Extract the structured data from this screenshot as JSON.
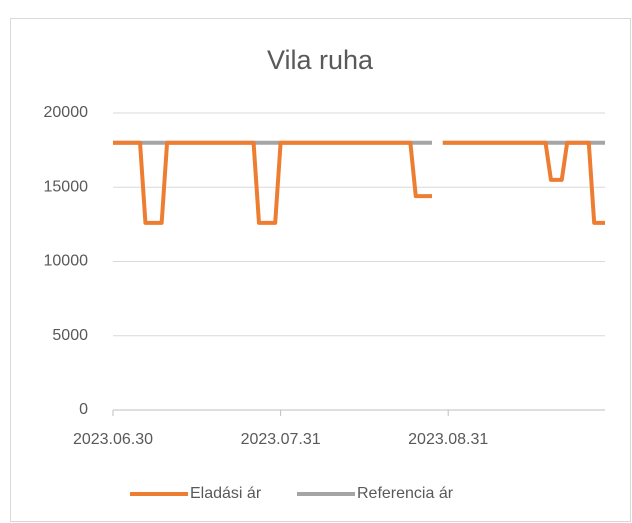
{
  "chart_data": {
    "type": "line",
    "title": "Vila ruha",
    "x": [
      "2023.06.30",
      "2023.07.05",
      "2023.07.06",
      "2023.07.09",
      "2023.07.10",
      "2023.07.26",
      "2023.07.27",
      "2023.07.30",
      "2023.07.31",
      "2023.08.24",
      "2023.08.25",
      "2023.08.28",
      "2023.08.29",
      "2023.08.30",
      "2023.09.18",
      "2023.09.19",
      "2023.09.21",
      "2023.09.22",
      "2023.09.26",
      "2023.09.27",
      "2023.09.29"
    ],
    "series": [
      {
        "name": "Referencia ár",
        "color": "#a5a5a5",
        "values": [
          18000,
          18000,
          18000,
          18000,
          18000,
          18000,
          18000,
          18000,
          18000,
          18000,
          18000,
          18000,
          null,
          18000,
          18000,
          18000,
          18000,
          18000,
          18000,
          18000,
          18000
        ]
      },
      {
        "name": "Eladási ár",
        "color": "#ed7d31",
        "values": [
          18000,
          18000,
          12600,
          12600,
          18000,
          18000,
          12600,
          12600,
          18000,
          18000,
          14400,
          14400,
          null,
          18000,
          18000,
          15500,
          15500,
          18000,
          18000,
          12600,
          12600
        ]
      }
    ],
    "legend_order": [
      "Eladási ár",
      "Referencia ár"
    ],
    "xlim": [
      "2023.06.30",
      "2023.09.29"
    ],
    "xticks": [
      "2023.06.30",
      "2023.07.31",
      "2023.08.31"
    ],
    "ylim": [
      0,
      20000
    ],
    "yticks": [
      0,
      5000,
      10000,
      15000,
      20000
    ],
    "grid": true,
    "legend": "bottom"
  }
}
